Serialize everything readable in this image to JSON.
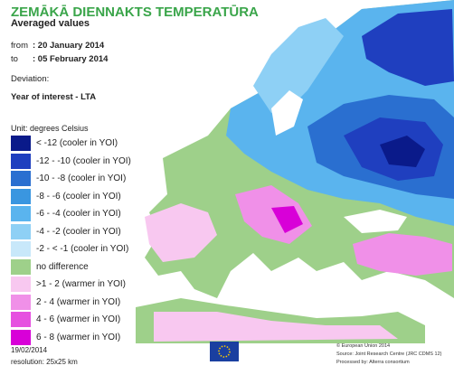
{
  "header": {
    "title": "ZEMĀKĀ DIENNAKTS TEMPERATŪRA",
    "subtitle": "Averaged values"
  },
  "period": {
    "from_label": "from",
    "from_date": ": 20 January 2014",
    "to_label": "to",
    "to_date": ": 05 February 2014"
  },
  "deviation": {
    "label": "Deviation:",
    "value": "Year of interest - LTA"
  },
  "legend": {
    "unit": "Unit: degrees Celsius",
    "items": [
      {
        "label": "< -12 (cooler in YOI)",
        "color": "#0a1a8a"
      },
      {
        "label": "-12 - -10 (cooler in YOI)",
        "color": "#1f3fbf"
      },
      {
        "label": "-10 - -8 (cooler in YOI)",
        "color": "#2a6fd0"
      },
      {
        "label": "-8 - -6 (cooler in YOI)",
        "color": "#3a96e0"
      },
      {
        "label": "-6 - -4 (cooler in YOI)",
        "color": "#5ab4ee"
      },
      {
        "label": "-4 - -2 (cooler in YOI)",
        "color": "#8ed0f5"
      },
      {
        "label": "-2 - < -1 (cooler in YOI)",
        "color": "#c8e8fa"
      },
      {
        "label": "no difference",
        "color": "#9ed08a"
      },
      {
        "label": ">1 - 2 (warmer in YOI)",
        "color": "#f8c8f0"
      },
      {
        "label": "2 - 4 (warmer in YOI)",
        "color": "#f090e8"
      },
      {
        "label": "4 - 6 (warmer in YOI)",
        "color": "#e650e0"
      },
      {
        "label": "6 - 8 (warmer in YOI)",
        "color": "#d800d8"
      }
    ]
  },
  "footer": {
    "date": "19/02/2014",
    "resolution": "resolution: 25x25 km",
    "credits": [
      "© European Union 2014",
      "Source: Joint Research Centre (JRC CDMS 12)",
      "Processed by: Alterra consortium"
    ]
  }
}
